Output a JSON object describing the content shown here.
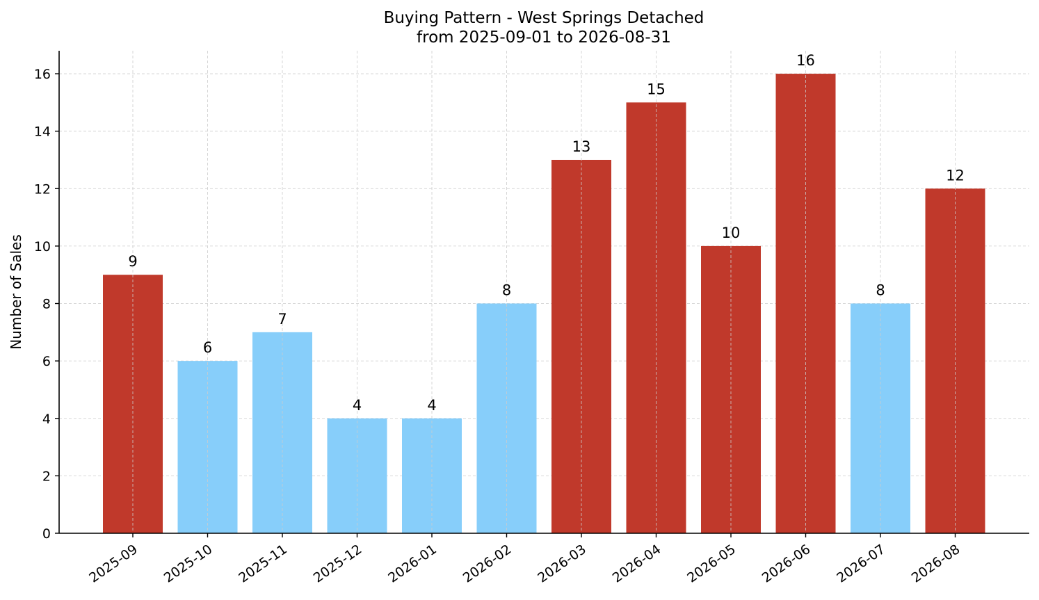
{
  "chart_data": {
    "type": "bar",
    "title": "Buying Pattern - West Springs Detached",
    "subtitle": "from 2025-09-01 to 2026-08-31",
    "xlabel": "",
    "ylabel": "Number of Sales",
    "categories": [
      "2025-09",
      "2025-10",
      "2025-11",
      "2025-12",
      "2026-01",
      "2026-02",
      "2026-03",
      "2026-04",
      "2026-05",
      "2026-06",
      "2026-07",
      "2026-08"
    ],
    "values": [
      9,
      6,
      7,
      4,
      4,
      8,
      13,
      15,
      10,
      16,
      8,
      12
    ],
    "bar_colors": [
      "#c0392b",
      "#87cefa",
      "#87cefa",
      "#87cefa",
      "#87cefa",
      "#87cefa",
      "#c0392b",
      "#c0392b",
      "#c0392b",
      "#c0392b",
      "#87cefa",
      "#c0392b"
    ],
    "ylim": [
      0,
      16.8
    ],
    "yticks": [
      0,
      2,
      4,
      6,
      8,
      10,
      12,
      14,
      16
    ],
    "grid": true,
    "data_labels": true
  }
}
